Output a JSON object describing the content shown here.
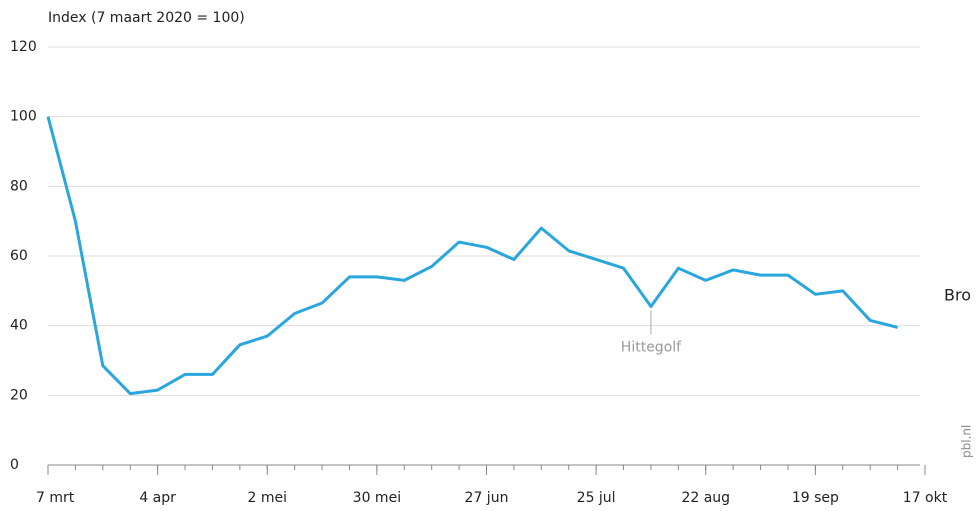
{
  "chart_data": {
    "type": "line",
    "y_label": "Index (7 maart 2020 = 100)",
    "x": [
      0,
      7,
      14,
      21,
      28,
      35,
      42,
      49,
      56,
      63,
      70,
      77,
      84,
      91,
      98,
      105,
      112,
      119,
      126,
      133,
      140,
      147,
      154,
      161,
      168,
      175,
      182,
      189,
      196,
      203,
      210,
      217
    ],
    "series": [
      {
        "name": "Index",
        "color": "#2aa6df",
        "values": [
          100,
          70,
          28.5,
          20.5,
          21.5,
          26,
          26,
          34.5,
          37,
          43.5,
          46.5,
          54,
          54,
          53,
          57,
          64,
          62.5,
          59,
          68,
          61.5,
          59,
          56.5,
          45.5,
          56.5,
          53,
          56,
          54.5,
          54.5,
          49,
          50,
          41.5,
          39.5
        ]
      }
    ],
    "xlim": [
      0,
      224
    ],
    "xticks": [
      {
        "value": 0,
        "label": "7 mrt"
      },
      {
        "value": 28,
        "label": "4 apr"
      },
      {
        "value": 56,
        "label": "2 mei"
      },
      {
        "value": 84,
        "label": "30 mei"
      },
      {
        "value": 112,
        "label": "27 jun"
      },
      {
        "value": 140,
        "label": "25 jul"
      },
      {
        "value": 168,
        "label": "22 aug"
      },
      {
        "value": 196,
        "label": "19 sep"
      },
      {
        "value": 224,
        "label": "17 okt"
      }
    ],
    "ylim": [
      0,
      120
    ],
    "yticks": [
      0,
      20,
      40,
      60,
      80,
      100,
      120
    ],
    "grid": true,
    "annotations": [
      {
        "text": "Hittegolf",
        "x": 154,
        "y": 45.5
      }
    ],
    "side_text": "Bro",
    "source": "pbl.nl"
  }
}
